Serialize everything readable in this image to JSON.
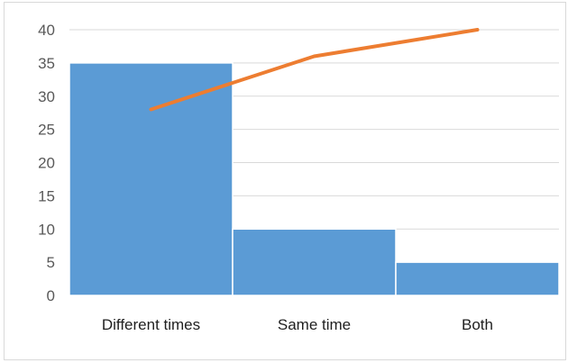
{
  "chart_data": {
    "type": "bar",
    "categories": [
      "Different times",
      "Same time",
      "Both"
    ],
    "series": [
      {
        "type": "bar",
        "values": [
          35,
          10,
          5
        ],
        "color": "#5b9bd5"
      },
      {
        "type": "line",
        "values": [
          28,
          36,
          40
        ],
        "color": "#ed7d31"
      }
    ],
    "ylim": [
      0,
      40
    ],
    "yticks": [
      0,
      5,
      10,
      15,
      20,
      25,
      30,
      35,
      40
    ],
    "grid": true,
    "legend": "none"
  }
}
